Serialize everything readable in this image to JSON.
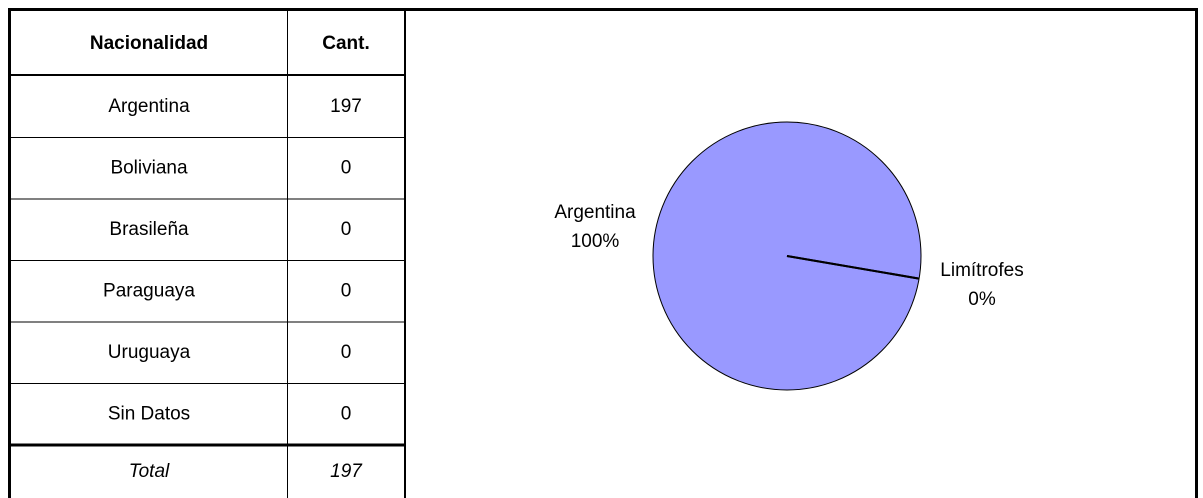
{
  "table": {
    "header": [
      "Nacionalidad",
      "Cant."
    ],
    "rows": [
      [
        "Argentina",
        197
      ],
      [
        "Boliviana",
        0
      ],
      [
        "Brasileña",
        0
      ],
      [
        "Paraguaya",
        0
      ],
      [
        "Uruguaya",
        0
      ],
      [
        "Sin Datos",
        0
      ]
    ],
    "total": [
      "Total",
      197
    ]
  },
  "chart_data": {
    "type": "pie",
    "categories": [
      "Argentina",
      "Limítrofes"
    ],
    "values": [
      100,
      0
    ],
    "value_labels": [
      "100%",
      "0%"
    ],
    "color": "#9999ff"
  }
}
